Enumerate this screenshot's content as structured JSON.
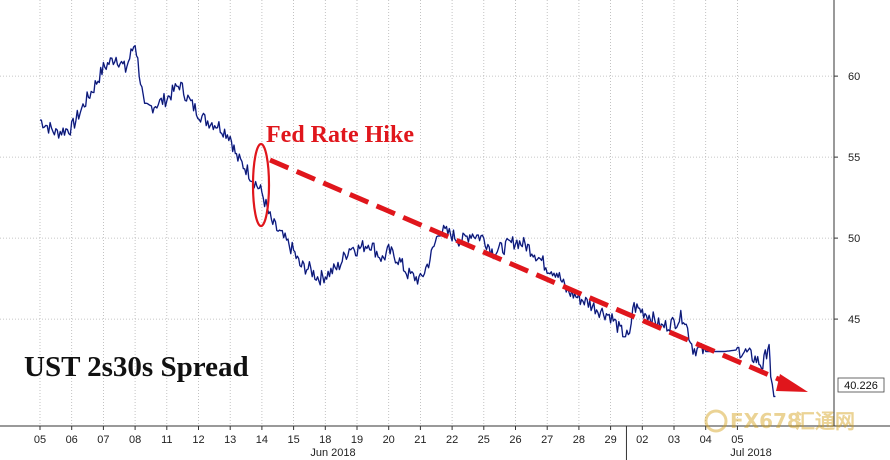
{
  "chart_data": {
    "type": "line",
    "title": "UST 2s30s Spread",
    "annotation": "Fed Rate Hike",
    "last_value": "40.226",
    "x_tick_labels": [
      "05",
      "06",
      "07",
      "08",
      "11",
      "12",
      "13",
      "14",
      "15",
      "18",
      "19",
      "20",
      "21",
      "22",
      "25",
      "26",
      "27",
      "28",
      "29",
      "02",
      "03",
      "04",
      "05"
    ],
    "month_labels": [
      "Jun 2018",
      "Jul 2018"
    ],
    "y_ticks": [
      45,
      50,
      55,
      60
    ],
    "ylim": [
      38.4,
      64.7
    ],
    "grid": true,
    "y_axis_side": "right",
    "series": [
      {
        "color": "#1a2ec0",
        "x": [
          0,
          0.5,
          1,
          1.4,
          1.7,
          2,
          2.4,
          2.7,
          3,
          3.3,
          3.6,
          4,
          4.4,
          4.8,
          5.2,
          5.6,
          6,
          6.2,
          6.5,
          6.8,
          7,
          7.3,
          7.6,
          8,
          8.2,
          8.5,
          8.8,
          9,
          9.4,
          9.8,
          10,
          10.4,
          10.8,
          11,
          11.3,
          11.6,
          12,
          12.3,
          12.6,
          13,
          13.3,
          13.6,
          14,
          14.3,
          14.6,
          15,
          15.3,
          15.6,
          16,
          16.3,
          16.6,
          17,
          17.3,
          17.6,
          18,
          18.3,
          18.6,
          18.7,
          19,
          19.3,
          19.6,
          20,
          20.3,
          20.6,
          21,
          21.3,
          21.6,
          22,
          22.3,
          22.6,
          22.8,
          23.0,
          23.05,
          23.2
        ],
        "y": [
          57.3,
          56.5,
          56.8,
          58.3,
          59.3,
          60.5,
          61.2,
          60.4,
          62.1,
          57.9,
          58.2,
          58.6,
          59.5,
          58.2,
          57.3,
          57.0,
          56.3,
          55.0,
          54.3,
          53.4,
          52.8,
          51.0,
          50.2,
          49.2,
          48.3,
          48.1,
          47.5,
          47.7,
          48.2,
          49.5,
          49.3,
          49.7,
          48.7,
          49.2,
          48.7,
          47.8,
          47.4,
          48.7,
          50.5,
          50.2,
          49.8,
          50.3,
          50.0,
          49.1,
          49.4,
          49.8,
          49.6,
          49.1,
          48.2,
          47.9,
          46.8,
          46.3,
          46.0,
          45.6,
          45.2,
          44.3,
          43.8,
          45.8,
          45.5,
          45.1,
          44.5,
          44.8,
          45.2,
          43.2,
          43.0,
          43.0,
          43.0,
          43.1,
          42.9,
          42.5,
          42.1,
          43.6,
          41.0,
          40.226
        ]
      }
    ],
    "colors": {
      "line": "#1a2ec0",
      "annotation": "#e0161c",
      "grid": "#b4b4b4"
    }
  },
  "watermark": {
    "brand": "FX678",
    "cn": "汇通网"
  }
}
